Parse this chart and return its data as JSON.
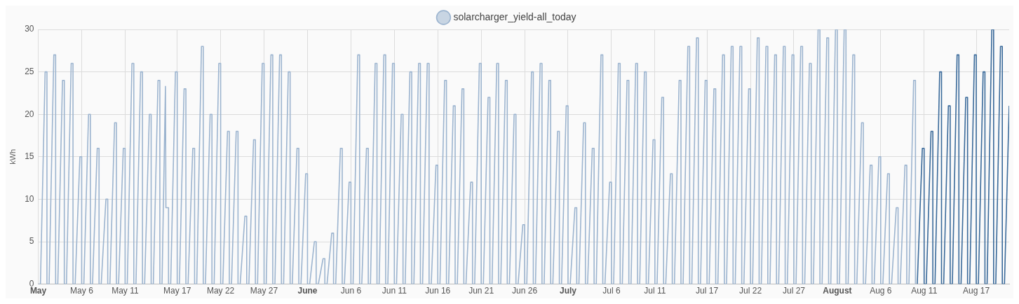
{
  "chart_data": {
    "type": "line",
    "ylabel": "kWh",
    "ylim": [
      0,
      30
    ],
    "yticks": [
      0,
      5,
      10,
      15,
      20,
      25,
      30
    ],
    "xlim": [
      "--05-01",
      "--08-20T19:00"
    ],
    "xticks": [
      {
        "value": "--05-01",
        "label": "May"
      },
      {
        "value": "--05-06",
        "label": "May 6"
      },
      {
        "value": "--05-11",
        "label": "May 11"
      },
      {
        "value": "--05-17",
        "label": "May 17"
      },
      {
        "value": "--05-22",
        "label": "May 22"
      },
      {
        "value": "--05-27",
        "label": "May 27"
      },
      {
        "value": "--06-01",
        "label": "June"
      },
      {
        "value": "--06-06",
        "label": "Jun 6"
      },
      {
        "value": "--06-11",
        "label": "Jun 11"
      },
      {
        "value": "--06-16",
        "label": "Jun 16"
      },
      {
        "value": "--06-21",
        "label": "Jun 21"
      },
      {
        "value": "--06-26",
        "label": "Jun 26"
      },
      {
        "value": "--07-01",
        "label": "July"
      },
      {
        "value": "--07-06",
        "label": "Jul 6"
      },
      {
        "value": "--07-11",
        "label": "Jul 11"
      },
      {
        "value": "--07-17",
        "label": "Jul 17"
      },
      {
        "value": "--07-22",
        "label": "Jul 22"
      },
      {
        "value": "--07-27",
        "label": "Jul 27"
      },
      {
        "value": "--08-01",
        "label": "August"
      },
      {
        "value": "--08-06",
        "label": "Aug 6"
      },
      {
        "value": "--08-11",
        "label": "Aug 11"
      },
      {
        "value": "--08-17",
        "label": "Aug 17"
      }
    ],
    "grid": true,
    "legend": "top",
    "marker": "none",
    "series": [
      {
        "name": "solarcharger_yield-all_today",
        "color": "#9cb4cf",
        "x": [
          "--05-01",
          "--05-01T06:00",
          "--05-01T19:00",
          "--05-02",
          "--05-02",
          "--05-02T06:00",
          "--05-02T19:00",
          "--05-03",
          "--05-03",
          "--05-03T06:00",
          "--05-03T19:00",
          "--05-04",
          "--05-04",
          "--05-04T06:00",
          "--05-04T19:00",
          "--05-05",
          "--05-05",
          "--05-05T06:00",
          "--05-05T19:00",
          "--05-06",
          "--05-06",
          "--05-06T06:00",
          "--05-06T19:00",
          "--05-07",
          "--05-07",
          "--05-07T06:00",
          "--05-07T19:00",
          "--05-08",
          "--05-08",
          "--05-08T06:00",
          "--05-08T19:00",
          "--05-09",
          "--05-09",
          "--05-09T06:00",
          "--05-09T19:00",
          "--05-10",
          "--05-10",
          "--05-10T06:00",
          "--05-10T19:00",
          "--05-11",
          "--05-11",
          "--05-11T06:00",
          "--05-11T19:00",
          "--05-12",
          "--05-12",
          "--05-12T06:00",
          "--05-12T19:00",
          "--05-13",
          "--05-13",
          "--05-13T06:00",
          "--05-13T19:00",
          "--05-14",
          "--05-14",
          "--05-14T06:00",
          "--05-14T19:00",
          "--05-15",
          "--05-15",
          "--05-15T06:00",
          "--05-15T15:30",
          "--05-15T16:45",
          "--05-16",
          "--05-16",
          "--05-16T06:00",
          "--05-16T19:00",
          "--05-17",
          "--05-17",
          "--05-17T06:00",
          "--05-17T19:00",
          "--05-18",
          "--05-18",
          "--05-18T06:00",
          "--05-18T19:00",
          "--05-19",
          "--05-19",
          "--05-19T06:00",
          "--05-19T19:00",
          "--05-20",
          "--05-20",
          "--05-20T06:00",
          "--05-20T19:00",
          "--05-21",
          "--05-21",
          "--05-21T06:00",
          "--05-21T19:00",
          "--05-22",
          "--05-22",
          "--05-22T06:00",
          "--05-22T19:00",
          "--05-23",
          "--05-23",
          "--05-23T06:00",
          "--05-23T19:00",
          "--05-24",
          "--05-24",
          "--05-24T06:00",
          "--05-24T19:00",
          "--05-25",
          "--05-25",
          "--05-25T06:00",
          "--05-25T19:00",
          "--05-26",
          "--05-26",
          "--05-26T06:00",
          "--05-26T19:00",
          "--05-27",
          "--05-27",
          "--05-27T06:00",
          "--05-27T19:00",
          "--05-28",
          "--05-28",
          "--05-28T06:00",
          "--05-28T19:00",
          "--05-29",
          "--05-29",
          "--05-29T06:00",
          "--05-29T19:00",
          "--05-30",
          "--05-30",
          "--05-30T06:00",
          "--05-30T19:00",
          "--05-31",
          "--05-31",
          "--05-31T06:00",
          "--05-31T19:00",
          "--06-01",
          "--06-01",
          "--06-01T06:00",
          "--06-01T19:00",
          "--06-02",
          "--06-02",
          "--06-02T06:00",
          "--06-02T19:00",
          "--06-03",
          "--06-03",
          "--06-03T06:00",
          "--06-03T19:00",
          "--06-04",
          "--06-04",
          "--06-04T06:00",
          "--06-04T19:00",
          "--06-05",
          "--06-05",
          "--06-05T06:00",
          "--06-05T19:00",
          "--06-06",
          "--06-06",
          "--06-06T06:00",
          "--06-06T19:00",
          "--06-07",
          "--06-07",
          "--06-07T06:00",
          "--06-07T19:00",
          "--06-08",
          "--06-08",
          "--06-08T06:00",
          "--06-08T19:00",
          "--06-09",
          "--06-09",
          "--06-09T06:00",
          "--06-09T19:00",
          "--06-10",
          "--06-10",
          "--06-10T06:00",
          "--06-10T19:00",
          "--06-11",
          "--06-11",
          "--06-11T06:00",
          "--06-11T19:00",
          "--06-12",
          "--06-12",
          "--06-12T06:00",
          "--06-12T19:00",
          "--06-13",
          "--06-13",
          "--06-13T06:00",
          "--06-13T19:00",
          "--06-14",
          "--06-14",
          "--06-14T06:00",
          "--06-14T19:00",
          "--06-15",
          "--06-15",
          "--06-15T06:00",
          "--06-15T19:00",
          "--06-16",
          "--06-16",
          "--06-16T06:00",
          "--06-16T19:00",
          "--06-17",
          "--06-17",
          "--06-17T06:00",
          "--06-17T19:00",
          "--06-18",
          "--06-18",
          "--06-18T06:00",
          "--06-18T19:00",
          "--06-19",
          "--06-19",
          "--06-19T06:00",
          "--06-19T19:00",
          "--06-20",
          "--06-20",
          "--06-20T06:00",
          "--06-20T19:00",
          "--06-21",
          "--06-21",
          "--06-21T06:00",
          "--06-21T19:00",
          "--06-22",
          "--06-22",
          "--06-22T06:00",
          "--06-22T19:00",
          "--06-23",
          "--06-23",
          "--06-23T06:00",
          "--06-23T19:00",
          "--06-24",
          "--06-24",
          "--06-24T06:00",
          "--06-24T19:00",
          "--06-25",
          "--06-25",
          "--06-25T06:00",
          "--06-25T19:00",
          "--06-26",
          "--06-26",
          "--06-26T06:00",
          "--06-26T19:00",
          "--06-27",
          "--06-27",
          "--06-27T06:00",
          "--06-27T19:00",
          "--06-28",
          "--06-28",
          "--06-28T06:00",
          "--06-28T19:00",
          "--06-29",
          "--06-29",
          "--06-29T06:00",
          "--06-29T19:00",
          "--06-30",
          "--06-30",
          "--06-30T06:00",
          "--06-30T19:00",
          "--07-01",
          "--07-01",
          "--07-01T06:00",
          "--07-01T19:00",
          "--07-02",
          "--07-02",
          "--07-02T06:00",
          "--07-02T19:00",
          "--07-03",
          "--07-03",
          "--07-03T06:00",
          "--07-03T19:00",
          "--07-04",
          "--07-04",
          "--07-04T06:00",
          "--07-04T19:00",
          "--07-05",
          "--07-05",
          "--07-05T06:00",
          "--07-05T19:00",
          "--07-06",
          "--07-06",
          "--07-06T06:00",
          "--07-06T19:00",
          "--07-07",
          "--07-07",
          "--07-07T06:00",
          "--07-07T19:00",
          "--07-08",
          "--07-08",
          "--07-08T06:00",
          "--07-08T19:00",
          "--07-09",
          "--07-09",
          "--07-09T06:00",
          "--07-09T19:00",
          "--07-10",
          "--07-10",
          "--07-10T06:00",
          "--07-10T19:00",
          "--07-11",
          "--07-11",
          "--07-11T06:00",
          "--07-11T19:00",
          "--07-12",
          "--07-12",
          "--07-12T06:00",
          "--07-12T19:00",
          "--07-13",
          "--07-13",
          "--07-13T06:00",
          "--07-13T19:00",
          "--07-14",
          "--07-14",
          "--07-14T06:00",
          "--07-14T19:00",
          "--07-15",
          "--07-15",
          "--07-15T06:00",
          "--07-15T19:00",
          "--07-16",
          "--07-16",
          "--07-16T06:00",
          "--07-16T19:00",
          "--07-17",
          "--07-17",
          "--07-17T06:00",
          "--07-17T19:00",
          "--07-18",
          "--07-18",
          "--07-18T06:00",
          "--07-18T19:00",
          "--07-19",
          "--07-19",
          "--07-19T06:00",
          "--07-19T19:00",
          "--07-20",
          "--07-20",
          "--07-20T06:00",
          "--07-20T19:00",
          "--07-21",
          "--07-21",
          "--07-21T06:00",
          "--07-21T19:00",
          "--07-22",
          "--07-22",
          "--07-22T06:00",
          "--07-22T19:00",
          "--07-23",
          "--07-23",
          "--07-23T06:00",
          "--07-23T19:00",
          "--07-24",
          "--07-24",
          "--07-24T06:00",
          "--07-24T19:00",
          "--07-25",
          "--07-25",
          "--07-25T06:00",
          "--07-25T19:00",
          "--07-26",
          "--07-26",
          "--07-26T06:00",
          "--07-26T19:00",
          "--07-27",
          "--07-27",
          "--07-27T06:00",
          "--07-27T19:00",
          "--07-28",
          "--07-28",
          "--07-28T06:00",
          "--07-28T19:00",
          "--07-29",
          "--07-29",
          "--07-29T06:00",
          "--07-29T19:00",
          "--07-30",
          "--07-30",
          "--07-30T06:00",
          "--07-30T19:00",
          "--07-31",
          "--07-31",
          "--07-31T06:00",
          "--07-31T19:00",
          "--08-01",
          "--08-01",
          "--08-01T06:00",
          "--08-01T19:00",
          "--08-02",
          "--08-02",
          "--08-02T06:00",
          "--08-02T19:00",
          "--08-03",
          "--08-03",
          "--08-03T06:00",
          "--08-03T19:00",
          "--08-04",
          "--08-04",
          "--08-04T06:00",
          "--08-04T19:00",
          "--08-05",
          "--08-05",
          "--08-05T06:00",
          "--08-05T19:00",
          "--08-06",
          "--08-06",
          "--08-06T06:00",
          "--08-06T19:00",
          "--08-07",
          "--08-07",
          "--08-07T06:00",
          "--08-07T19:00",
          "--08-08",
          "--08-08",
          "--08-08T06:00",
          "--08-08T19:00",
          "--08-09",
          "--08-09",
          "--08-09T06:00",
          "--08-09T19:00",
          "--08-10",
          "--08-10"
        ],
        "values": [
          0,
          0,
          25,
          25,
          0,
          0,
          27,
          27,
          0,
          0,
          24,
          24,
          0,
          0,
          26,
          26,
          0,
          0,
          15,
          15,
          0,
          0,
          20,
          20,
          0,
          0,
          16,
          16,
          0,
          0,
          10,
          10,
          0,
          0,
          19,
          19,
          0,
          0,
          16,
          16,
          0,
          0,
          26,
          26,
          0,
          0,
          25,
          25,
          0,
          0,
          20,
          20,
          0,
          0,
          24,
          24,
          0,
          0,
          23.3,
          9,
          9,
          0,
          0,
          25,
          25,
          0,
          0,
          23,
          23,
          0,
          0,
          16,
          16,
          0,
          0,
          28,
          28,
          0,
          0,
          20,
          20,
          0,
          0,
          26,
          26,
          0,
          0,
          18,
          18,
          0,
          0,
          18,
          18,
          0,
          0,
          8,
          8,
          0,
          0,
          17,
          17,
          0,
          0,
          26,
          26,
          0,
          0,
          27,
          27,
          0,
          0,
          27,
          27,
          0,
          0,
          25,
          25,
          0,
          0,
          16,
          16,
          0,
          0,
          13,
          13,
          0,
          0,
          5,
          5,
          0,
          0,
          3,
          3,
          0,
          0,
          6,
          6,
          0,
          0,
          16,
          16,
          0,
          0,
          12,
          12,
          0,
          0,
          27,
          27,
          0,
          0,
          16,
          16,
          0,
          0,
          26,
          26,
          0,
          0,
          27,
          27,
          0,
          0,
          26,
          26,
          0,
          0,
          20,
          20,
          0,
          0,
          25,
          25,
          0,
          0,
          26,
          26,
          0,
          0,
          26,
          26,
          0,
          0,
          14,
          14,
          0,
          0,
          24,
          24,
          0,
          0,
          21,
          21,
          0,
          0,
          23,
          23,
          0,
          0,
          12,
          12,
          0,
          0,
          26,
          26,
          0,
          0,
          22,
          22,
          0,
          0,
          26,
          26,
          0,
          0,
          24,
          24,
          0,
          0,
          20,
          20,
          0,
          0,
          7,
          7,
          0,
          0,
          25,
          25,
          0,
          0,
          26,
          26,
          0,
          0,
          24,
          24,
          0,
          0,
          18,
          18,
          0,
          0,
          21,
          21,
          0,
          0,
          9,
          9,
          0,
          0,
          19,
          19,
          0,
          0,
          16,
          16,
          0,
          0,
          27,
          27,
          0,
          0,
          12,
          12,
          0,
          0,
          26,
          26,
          0,
          0,
          24,
          24,
          0,
          0,
          26,
          26,
          0,
          0,
          25,
          25,
          0,
          0,
          17,
          17,
          0,
          0,
          22,
          22,
          0,
          0,
          13,
          13,
          0,
          0,
          24,
          24,
          0,
          0,
          28,
          28,
          0,
          0,
          29,
          29,
          0,
          0,
          24,
          24,
          0,
          0,
          23,
          23,
          0,
          0,
          27,
          27,
          0,
          0,
          28,
          28,
          0,
          0,
          28,
          28,
          0,
          0,
          23,
          23,
          0,
          0,
          29,
          29,
          0,
          0,
          28,
          28,
          0,
          0,
          27,
          27,
          0,
          0,
          28,
          28,
          0,
          0,
          27,
          27,
          0,
          0,
          28,
          28,
          0,
          0,
          26,
          26,
          0,
          0,
          30,
          30,
          0,
          0,
          29,
          29,
          0,
          0,
          30,
          30,
          0,
          0,
          30,
          30,
          0,
          0,
          27,
          27,
          0,
          0,
          19,
          19,
          0,
          0,
          14,
          14,
          0,
          0,
          15,
          15,
          0,
          0,
          13,
          13,
          0,
          0,
          9,
          9,
          0,
          0,
          14,
          14,
          0,
          0,
          24,
          24,
          0
        ]
      },
      {
        "color": "#3a6a9a",
        "x": [
          "--08-10T05:00",
          "--08-10T19:00",
          "--08-11",
          "--08-11",
          "--08-11T06:00",
          "--08-11T19:00",
          "--08-12",
          "--08-12",
          "--08-12T06:00",
          "--08-12T19:00",
          "--08-13",
          "--08-13",
          "--08-13T06:00",
          "--08-13T19:00",
          "--08-14",
          "--08-14",
          "--08-14T06:00",
          "--08-14T19:00",
          "--08-15",
          "--08-15",
          "--08-15T06:00",
          "--08-15T19:00",
          "--08-16",
          "--08-16",
          "--08-16T06:00",
          "--08-16T19:00",
          "--08-17",
          "--08-17",
          "--08-17T06:00",
          "--08-17T19:00",
          "--08-18",
          "--08-18",
          "--08-18T06:00",
          "--08-18T19:00",
          "--08-19",
          "--08-19",
          "--08-19T06:00",
          "--08-19T19:00",
          "--08-20",
          "--08-20",
          "--08-20T06:00",
          "--08-20T19:00"
        ],
        "values": [
          0,
          16,
          16,
          0,
          0,
          18,
          18,
          0,
          0,
          25,
          25,
          0,
          0,
          21,
          21,
          0,
          0,
          27,
          27,
          0,
          0,
          22,
          22,
          0,
          0,
          27,
          27,
          0,
          0,
          25,
          25,
          0,
          0,
          30,
          30,
          0,
          0,
          28,
          28,
          0,
          0,
          21
        ]
      }
    ]
  }
}
